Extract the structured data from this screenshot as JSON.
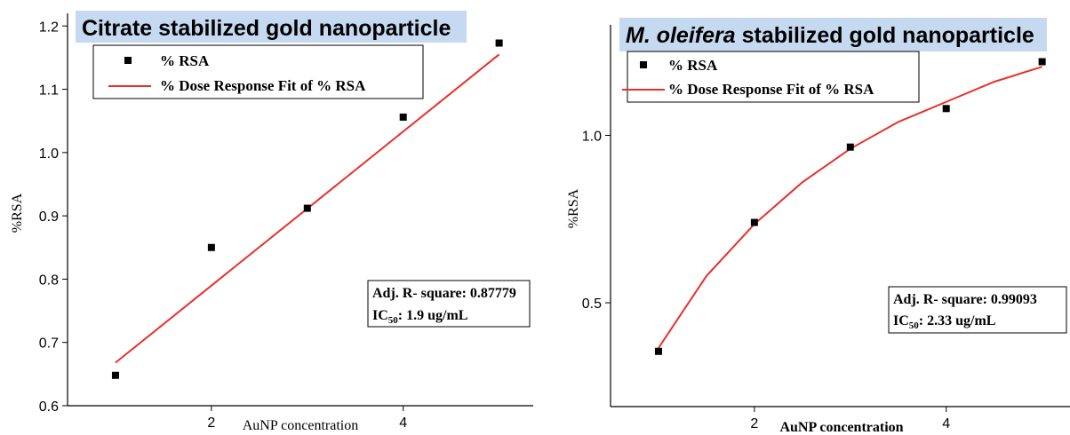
{
  "chart_data": [
    {
      "type": "scatter",
      "title": "Citrate stabilized gold nanoparticle",
      "xlabel": "AuNP concentration",
      "ylabel": "%RSA",
      "xlim": [
        0.5,
        5.3
      ],
      "ylim": [
        0.6,
        1.22
      ],
      "x_ticks": [
        2,
        4
      ],
      "y_ticks": [
        0.6,
        0.7,
        0.8,
        0.9,
        1.0,
        1.1,
        1.2
      ],
      "y_tick_labels": [
        "0.6",
        "0.7",
        "0.8",
        "0.9",
        "1.0",
        "1.1",
        "1.2"
      ],
      "x": [
        1,
        2,
        3,
        4,
        5
      ],
      "series": [
        {
          "name": "% RSA",
          "values": [
            0.648,
            0.85,
            0.912,
            1.056,
            1.173
          ]
        }
      ],
      "fit": {
        "name": "% Dose Response Fit of % RSA",
        "x": [
          1,
          5
        ],
        "values": [
          0.668,
          1.155
        ]
      },
      "legend": [
        "% RSA",
        "% Dose Response Fit of % RSA"
      ],
      "stats": {
        "r2_label": "Adj. R- square: 0.87779",
        "ic_prefix": "IC",
        "ic_sub": "50",
        "ic_value": ":  1.9 ug/mL"
      },
      "colors": {
        "fit": "#e8302a",
        "points": "#000000",
        "title_bg": "#c5d9f1"
      }
    },
    {
      "type": "scatter",
      "title_italic": "M. oleifera",
      "title_rest": " stabilized gold nanoparticle",
      "xlabel": "AuNP concentration",
      "ylabel": "%RSA",
      "xlim": [
        0.5,
        5.3
      ],
      "ylim": [
        0.19,
        1.33
      ],
      "x_ticks": [
        2,
        4
      ],
      "y_ticks": [
        0.5,
        1.0
      ],
      "y_tick_labels": [
        "0.5",
        "1.0"
      ],
      "x": [
        1,
        2,
        3,
        4,
        5
      ],
      "series": [
        {
          "name": "% RSA",
          "values": [
            0.355,
            0.74,
            0.965,
            1.08,
            1.22
          ]
        }
      ],
      "fit": {
        "name": "% Dose Response Fit of % RSA",
        "x": [
          1,
          1.5,
          2,
          2.5,
          3,
          3.5,
          4,
          4.5,
          5
        ],
        "values": [
          0.365,
          0.58,
          0.735,
          0.86,
          0.96,
          1.04,
          1.1,
          1.16,
          1.205
        ]
      },
      "legend": [
        "% RSA",
        "% Dose Response Fit of % RSA"
      ],
      "stats": {
        "r2_label": "Adj. R- square: 0.99093",
        "ic_prefix": "IC",
        "ic_sub": "50",
        "ic_value": ":  2.33 ug/mL"
      },
      "colors": {
        "fit": "#e8302a",
        "points": "#000000",
        "title_bg": "#c5d9f1"
      }
    }
  ]
}
